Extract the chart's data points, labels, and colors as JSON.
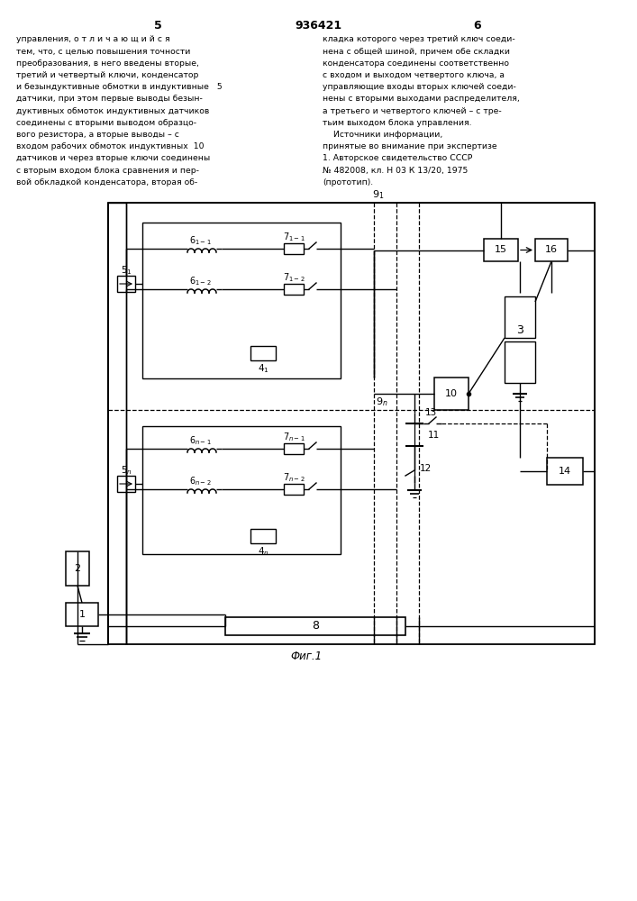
{
  "title": "936421",
  "page_left": "5",
  "page_right": "6",
  "fig_label": "Фиг.1",
  "bg_color": "#ffffff",
  "text_color": "#000000",
  "line_color": "#000000",
  "text_left": [
    "управления, о т л и ч а ю щ и й с я",
    "тем, что, с целью повышения точности",
    "преобразования, в него введены вторые,",
    "третий и четвертый ключи, конденсатор",
    "и безындуктивные обмотки в индуктивные   5",
    "датчики, при этом первые выводы безын-",
    "дуктивных обмоток индуктивных датчиков",
    "соединены с вторыми выводом образцо-",
    "вого резистора, а вторые выводы – с",
    "входом рабочих обмоток индуктивных  10",
    "датчиков и через вторые ключи соединены",
    "с вторым входом блока сравнения и пер-",
    "вой обкладкой конденсатора, вторая об-"
  ],
  "text_right": [
    "кладка которого через третий ключ соеди-",
    "нена с общей шиной, причем обе складки",
    "конденсатора соединены соответственно",
    "с входом и выходом четвертого ключа, а",
    "управляющие входы вторых ключей соеди-",
    "нены с вторыми выходами распределителя,",
    "а третьего и четвертого ключей – с тре-",
    "тьим выходом блока управления.",
    "    Источники информации,",
    "принятые во внимание при экспертизе",
    "1. Авторское свидетельство СССР",
    "№ 482008, кл. Н 03 К 13/20, 1975",
    "(прототип)."
  ]
}
